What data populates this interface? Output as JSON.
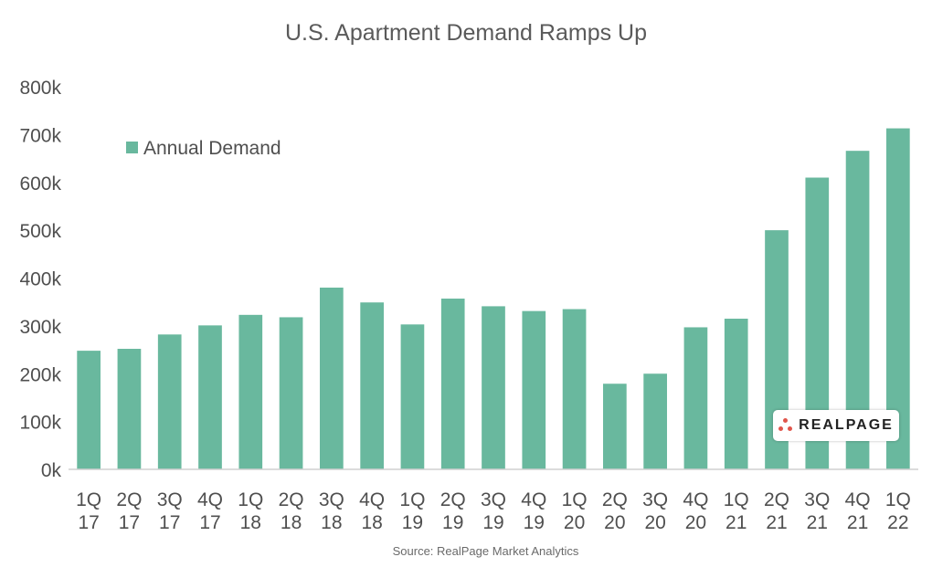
{
  "colors": {
    "bar": "#69b89e",
    "axis": "#d0d0d0",
    "logo_dot": "#e0554b"
  },
  "source": "Source: RealPage Market Analytics",
  "logo": {
    "text": "REALPAGE",
    "icon": "realpage-dots-icon"
  },
  "chart_data": {
    "type": "bar",
    "title": "U.S. Apartment Demand Ramps Up",
    "xlabel": "",
    "ylabel": "",
    "ylim": [
      0,
      800000
    ],
    "yticks": [
      {
        "value": 0,
        "label": "0k"
      },
      {
        "value": 100000,
        "label": "100k"
      },
      {
        "value": 200000,
        "label": "200k"
      },
      {
        "value": 300000,
        "label": "300k"
      },
      {
        "value": 400000,
        "label": "400k"
      },
      {
        "value": 500000,
        "label": "500k"
      },
      {
        "value": 600000,
        "label": "600k"
      },
      {
        "value": 700000,
        "label": "700k"
      },
      {
        "value": 800000,
        "label": "800k"
      }
    ],
    "grid": false,
    "legend_position": "top-left",
    "categories": [
      [
        "1Q",
        "17"
      ],
      [
        "2Q",
        "17"
      ],
      [
        "3Q",
        "17"
      ],
      [
        "4Q",
        "17"
      ],
      [
        "1Q",
        "18"
      ],
      [
        "2Q",
        "18"
      ],
      [
        "3Q",
        "18"
      ],
      [
        "4Q",
        "18"
      ],
      [
        "1Q",
        "19"
      ],
      [
        "2Q",
        "19"
      ],
      [
        "3Q",
        "19"
      ],
      [
        "4Q",
        "19"
      ],
      [
        "1Q",
        "20"
      ],
      [
        "2Q",
        "20"
      ],
      [
        "3Q",
        "20"
      ],
      [
        "4Q",
        "20"
      ],
      [
        "1Q",
        "21"
      ],
      [
        "2Q",
        "21"
      ],
      [
        "3Q",
        "21"
      ],
      [
        "4Q",
        "21"
      ],
      [
        "1Q",
        "22"
      ]
    ],
    "series": [
      {
        "name": "Annual Demand",
        "values": [
          248000,
          252000,
          282000,
          301000,
          323000,
          318000,
          380000,
          349000,
          303000,
          357000,
          341000,
          331000,
          335000,
          179000,
          200000,
          297000,
          315000,
          500000,
          610000,
          666000,
          713000
        ]
      }
    ]
  }
}
